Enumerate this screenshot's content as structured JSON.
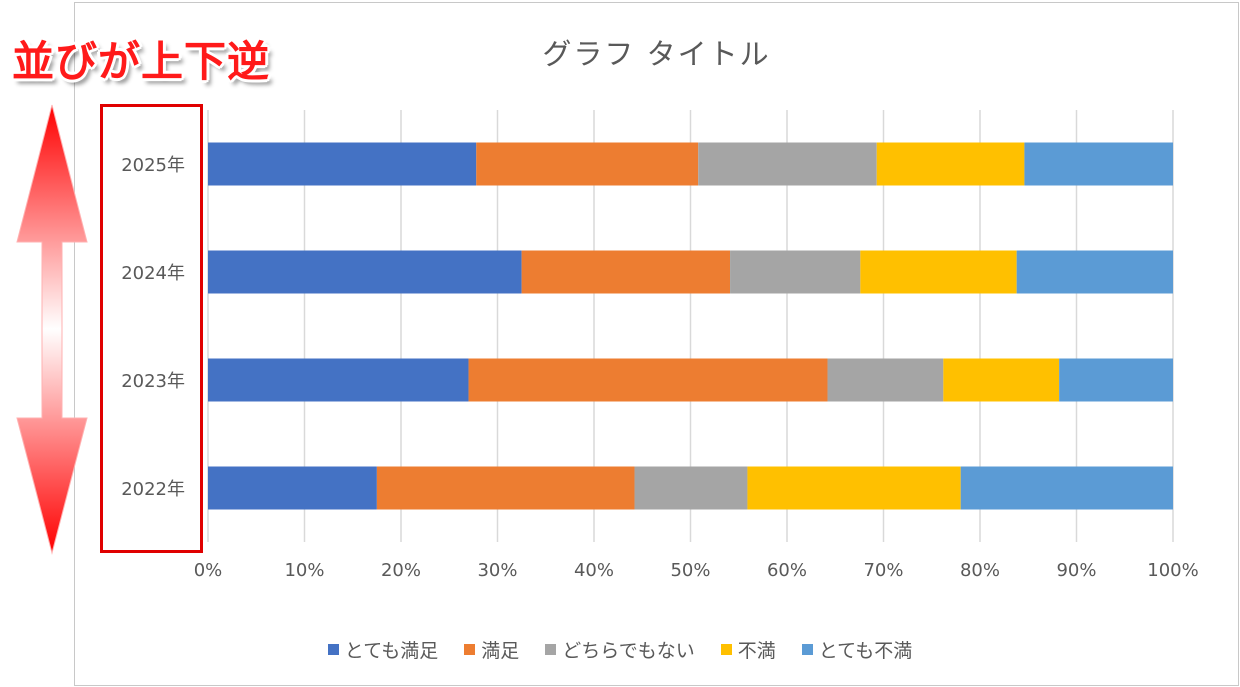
{
  "annotation": {
    "label": "並びが上下逆"
  },
  "chart_data": {
    "type": "bar",
    "orientation": "horizontal",
    "stacked": "percent",
    "title": "グラフ タイトル",
    "categories": [
      "2022年",
      "2023年",
      "2024年",
      "2025年"
    ],
    "series": [
      {
        "name": "とても満足",
        "color": "#4472c4",
        "values": [
          17.5,
          27.0,
          32.5,
          27.8
        ]
      },
      {
        "name": "満足",
        "color": "#ed7d31",
        "values": [
          26.7,
          37.2,
          21.6,
          23.0
        ]
      },
      {
        "name": "どちらでもない",
        "color": "#a5a5a5",
        "values": [
          11.7,
          12.0,
          13.5,
          18.5
        ]
      },
      {
        "name": "不満",
        "color": "#ffc000",
        "values": [
          22.1,
          12.0,
          16.2,
          15.3
        ]
      },
      {
        "name": "とても不満",
        "color": "#5b9bd5",
        "values": [
          22.0,
          11.8,
          16.2,
          15.4
        ]
      }
    ],
    "xlim": [
      0,
      100
    ],
    "xticks": [
      "0%",
      "10%",
      "20%",
      "30%",
      "40%",
      "50%",
      "60%",
      "70%",
      "80%",
      "90%",
      "100%"
    ],
    "grid": true,
    "legend_position": "bottom"
  }
}
